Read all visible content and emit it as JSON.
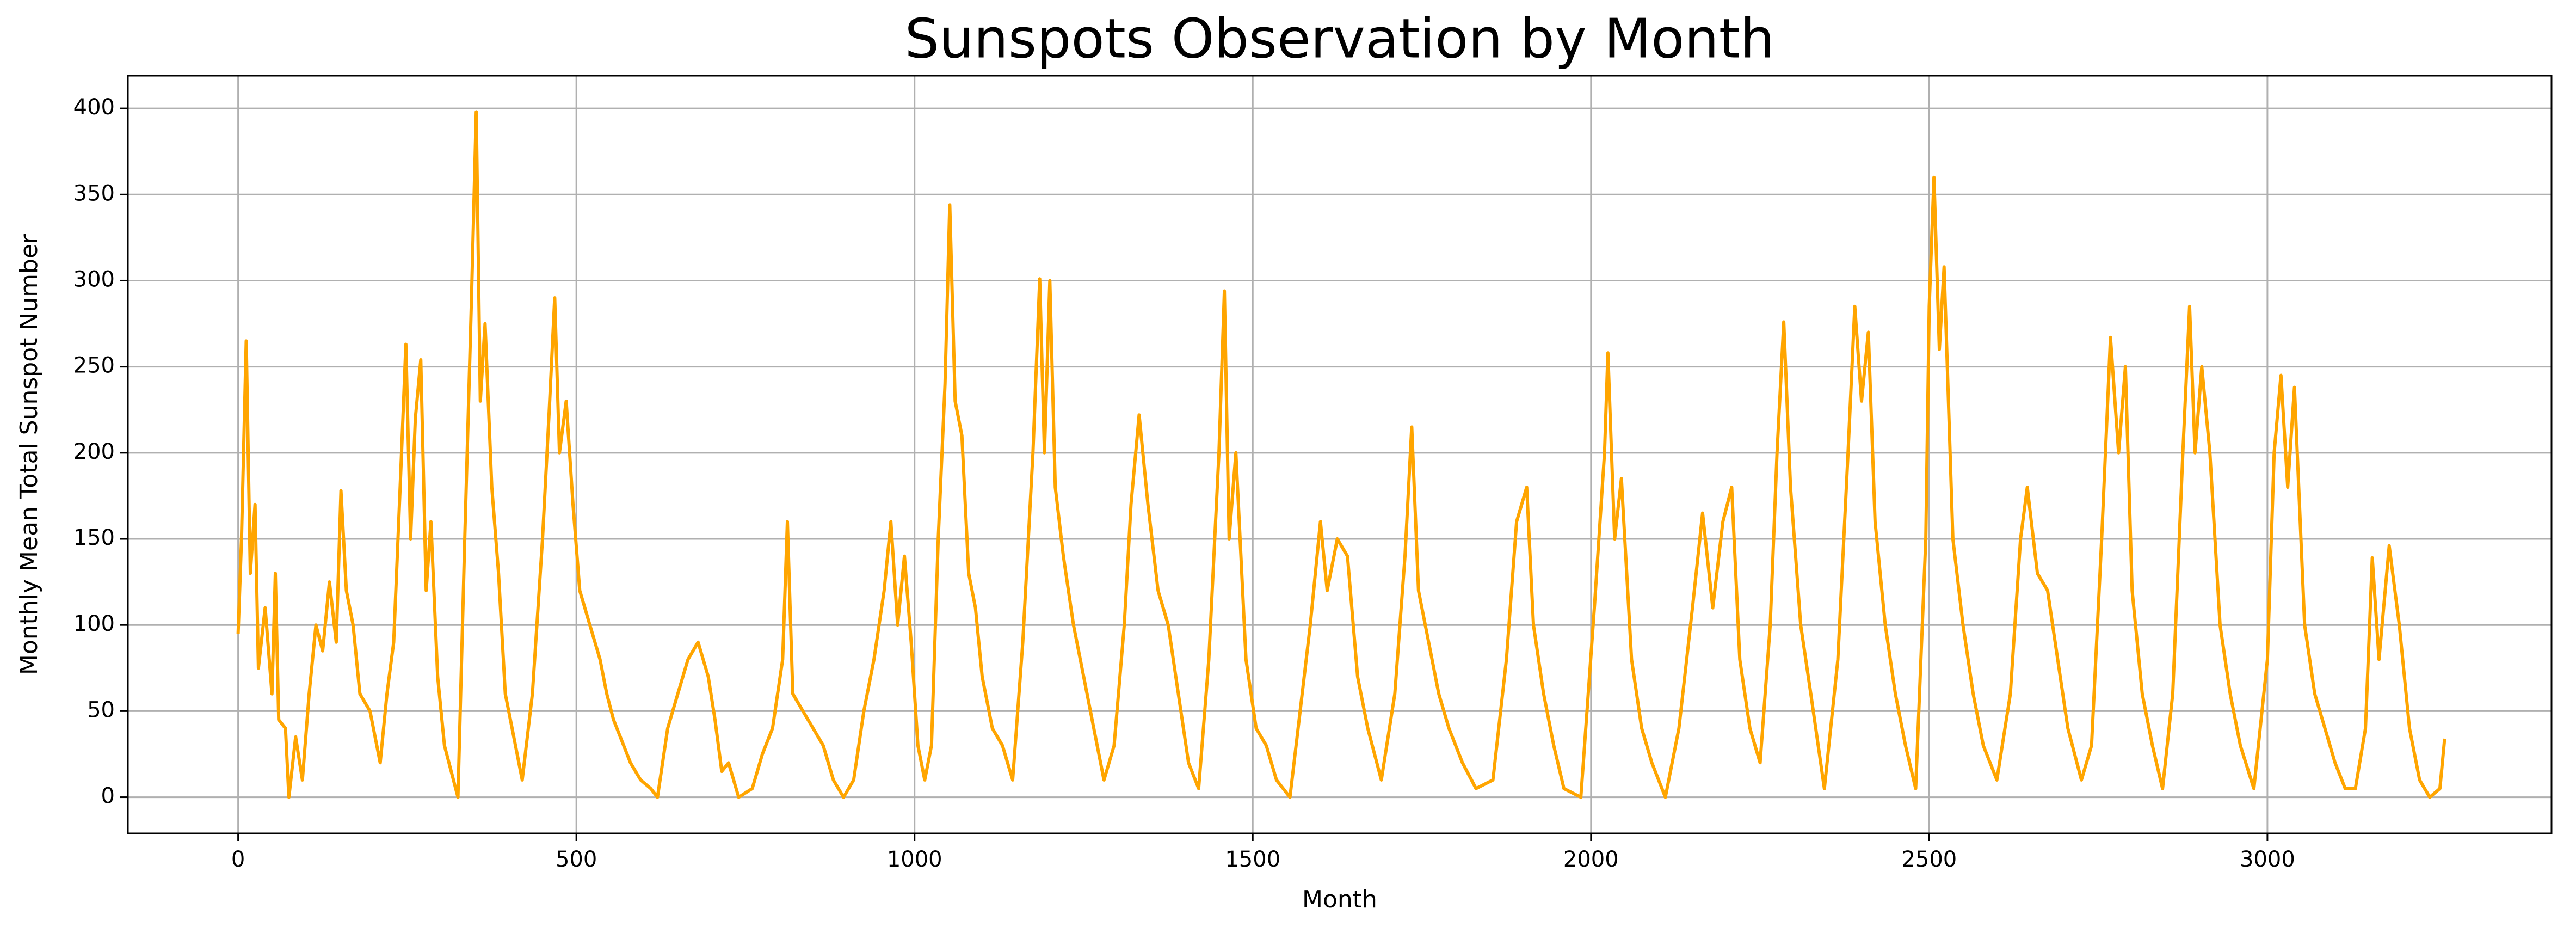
{
  "chart_data": {
    "type": "line",
    "title": "Sunspots Observation by Month",
    "x_label": "Month",
    "y_label": "Monthly Mean Total Sunspot Number",
    "color": "#ffa500",
    "grid": true,
    "xlim": [
      -163,
      3420
    ],
    "ylim": [
      -21,
      419
    ],
    "xticks": [
      0,
      500,
      1000,
      1500,
      2000,
      2500,
      3000
    ],
    "yticks": [
      0,
      50,
      100,
      150,
      200,
      250,
      300,
      350,
      400
    ],
    "x": [
      0,
      5,
      12,
      18,
      25,
      30,
      40,
      50,
      55,
      60,
      70,
      75,
      85,
      95,
      105,
      115,
      125,
      135,
      145,
      152,
      160,
      170,
      180,
      195,
      210,
      220,
      230,
      240,
      248,
      255,
      262,
      270,
      278,
      285,
      295,
      305,
      315,
      325,
      335,
      345,
      352,
      358,
      365,
      375,
      385,
      395,
      405,
      420,
      435,
      450,
      460,
      468,
      475,
      485,
      495,
      505,
      520,
      535,
      545,
      555,
      570,
      580,
      595,
      610,
      620,
      635,
      650,
      665,
      680,
      695,
      705,
      715,
      725,
      740,
      760,
      775,
      790,
      805,
      812,
      820,
      835,
      850,
      865,
      880,
      895,
      910,
      925,
      940,
      955,
      965,
      975,
      985,
      995,
      1005,
      1015,
      1025,
      1035,
      1045,
      1052,
      1060,
      1070,
      1080,
      1090,
      1100,
      1115,
      1130,
      1145,
      1160,
      1175,
      1185,
      1192,
      1200,
      1208,
      1220,
      1235,
      1250,
      1265,
      1280,
      1295,
      1310,
      1320,
      1332,
      1345,
      1360,
      1375,
      1390,
      1405,
      1420,
      1435,
      1450,
      1458,
      1465,
      1475,
      1490,
      1505,
      1520,
      1535,
      1555,
      1570,
      1585,
      1600,
      1610,
      1625,
      1640,
      1655,
      1670,
      1690,
      1710,
      1725,
      1735,
      1745,
      1760,
      1775,
      1790,
      1810,
      1830,
      1855,
      1875,
      1890,
      1905,
      1915,
      1930,
      1945,
      1960,
      1985,
      2005,
      2020,
      2025,
      2035,
      2045,
      2060,
      2075,
      2090,
      2110,
      2130,
      2150,
      2165,
      2180,
      2195,
      2208,
      2220,
      2235,
      2250,
      2265,
      2275,
      2285,
      2295,
      2310,
      2325,
      2345,
      2365,
      2380,
      2390,
      2400,
      2410,
      2420,
      2435,
      2450,
      2465,
      2480,
      2495,
      2500,
      2507,
      2515,
      2522,
      2535,
      2550,
      2565,
      2580,
      2600,
      2620,
      2635,
      2645,
      2660,
      2675,
      2690,
      2705,
      2725,
      2740,
      2755,
      2768,
      2780,
      2790,
      2800,
      2815,
      2830,
      2845,
      2860,
      2875,
      2885,
      2893,
      2903,
      2915,
      2930,
      2945,
      2960,
      2980,
      3000,
      3010,
      3020,
      3030,
      3040,
      3055,
      3070,
      3085,
      3100,
      3115,
      3130,
      3145,
      3155,
      3165,
      3180,
      3195,
      3210,
      3225,
      3240,
      3255,
      3262
    ],
    "values": [
      95,
      150,
      265,
      130,
      170,
      75,
      110,
      60,
      130,
      45,
      40,
      0,
      35,
      10,
      60,
      100,
      85,
      125,
      90,
      178,
      120,
      100,
      60,
      50,
      20,
      60,
      90,
      185,
      263,
      150,
      220,
      254,
      120,
      160,
      70,
      30,
      15,
      0,
      150,
      290,
      398,
      230,
      275,
      180,
      130,
      60,
      40,
      10,
      60,
      150,
      225,
      290,
      200,
      230,
      170,
      120,
      100,
      80,
      60,
      45,
      30,
      20,
      10,
      5,
      0,
      40,
      60,
      80,
      90,
      70,
      45,
      15,
      20,
      0,
      5,
      25,
      40,
      80,
      160,
      60,
      50,
      40,
      30,
      10,
      0,
      10,
      50,
      80,
      120,
      160,
      100,
      140,
      90,
      30,
      10,
      30,
      150,
      240,
      344,
      230,
      210,
      130,
      110,
      70,
      40,
      30,
      10,
      90,
      200,
      301,
      200,
      300,
      180,
      140,
      100,
      70,
      40,
      10,
      30,
      100,
      170,
      222,
      170,
      120,
      100,
      60,
      20,
      5,
      80,
      200,
      294,
      150,
      200,
      80,
      40,
      30,
      10,
      0,
      50,
      100,
      160,
      120,
      150,
      140,
      70,
      40,
      10,
      60,
      140,
      215,
      120,
      90,
      60,
      40,
      20,
      5,
      10,
      80,
      160,
      180,
      100,
      60,
      30,
      5,
      0,
      110,
      200,
      258,
      150,
      185,
      80,
      40,
      20,
      0,
      40,
      110,
      165,
      110,
      160,
      180,
      80,
      40,
      20,
      100,
      200,
      276,
      180,
      100,
      60,
      5,
      80,
      200,
      285,
      230,
      270,
      160,
      100,
      60,
      30,
      5,
      150,
      285,
      360,
      260,
      308,
      150,
      100,
      60,
      30,
      10,
      60,
      150,
      180,
      130,
      120,
      80,
      40,
      10,
      30,
      150,
      267,
      200,
      250,
      120,
      60,
      30,
      5,
      60,
      200,
      285,
      200,
      250,
      200,
      100,
      60,
      30,
      5,
      80,
      200,
      245,
      180,
      238,
      100,
      60,
      40,
      20,
      5,
      5,
      40,
      139,
      80,
      146,
      100,
      40,
      10,
      0,
      5,
      34
    ]
  }
}
